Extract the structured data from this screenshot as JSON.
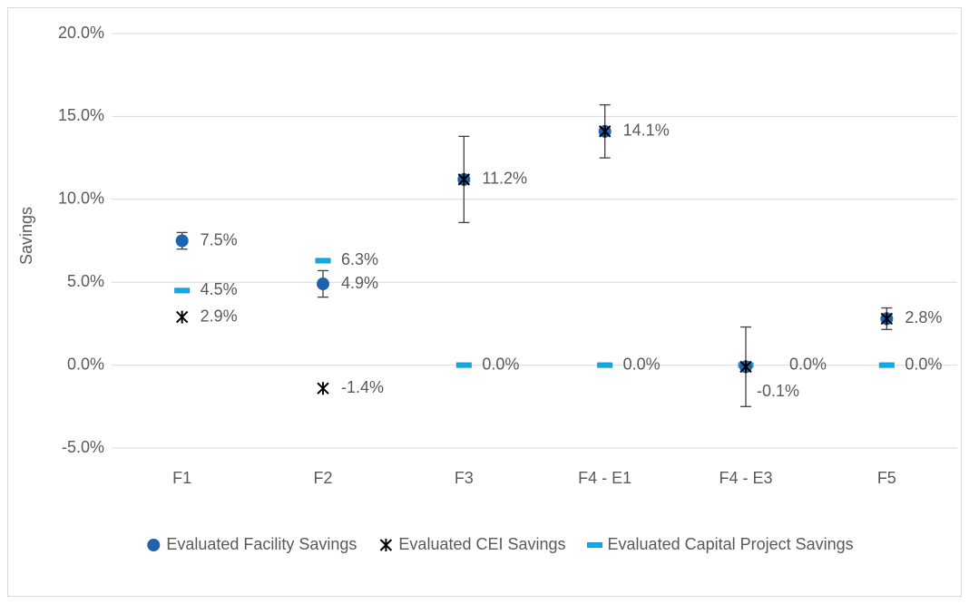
{
  "chart_data": {
    "type": "scatter",
    "y_label": "Savings",
    "categories": [
      "F1",
      "F2",
      "F3",
      "F4 - E1",
      "F4 - E3",
      "F5"
    ],
    "series": [
      {
        "name": "Evaluated Facility Savings",
        "color": "#1f62ad",
        "marker": "circle",
        "values": [
          7.5,
          4.9,
          11.2,
          14.1,
          -0.1,
          2.8
        ],
        "errors": [
          0.5,
          0.8,
          2.6,
          1.6,
          2.4,
          0.65
        ],
        "value_labels": [
          "7.5%",
          "4.9%",
          null,
          null,
          null,
          null
        ]
      },
      {
        "name": "Evaluated CEI Savings",
        "color": "#000000",
        "marker": "asterisk",
        "values": [
          2.9,
          -1.4,
          11.2,
          14.1,
          -0.1,
          2.8
        ],
        "value_labels": [
          "2.9%",
          "-1.4%",
          "11.2%",
          "14.1%",
          "-0.1%",
          "2.8%"
        ]
      },
      {
        "name": "Evaluated Capital Project Savings",
        "color": "#00b0f0",
        "marker": "dash",
        "values": [
          4.5,
          6.3,
          0.0,
          0.0,
          0.0,
          0.0
        ],
        "value_labels": [
          "4.5%",
          "6.3%",
          "0.0%",
          "0.0%",
          "0.0%",
          "0.0%"
        ]
      }
    ],
    "ylim": [
      -5,
      20
    ],
    "yticks": [
      {
        "value": -5,
        "label": "-5.0%"
      },
      {
        "value": 0,
        "label": "0.0%"
      },
      {
        "value": 5,
        "label": "5.0%"
      },
      {
        "value": 10,
        "label": "10.0%"
      },
      {
        "value": 15,
        "label": "15.0%"
      },
      {
        "value": 20,
        "label": "20.0%"
      }
    ],
    "grid": true,
    "legend": "bottom"
  }
}
